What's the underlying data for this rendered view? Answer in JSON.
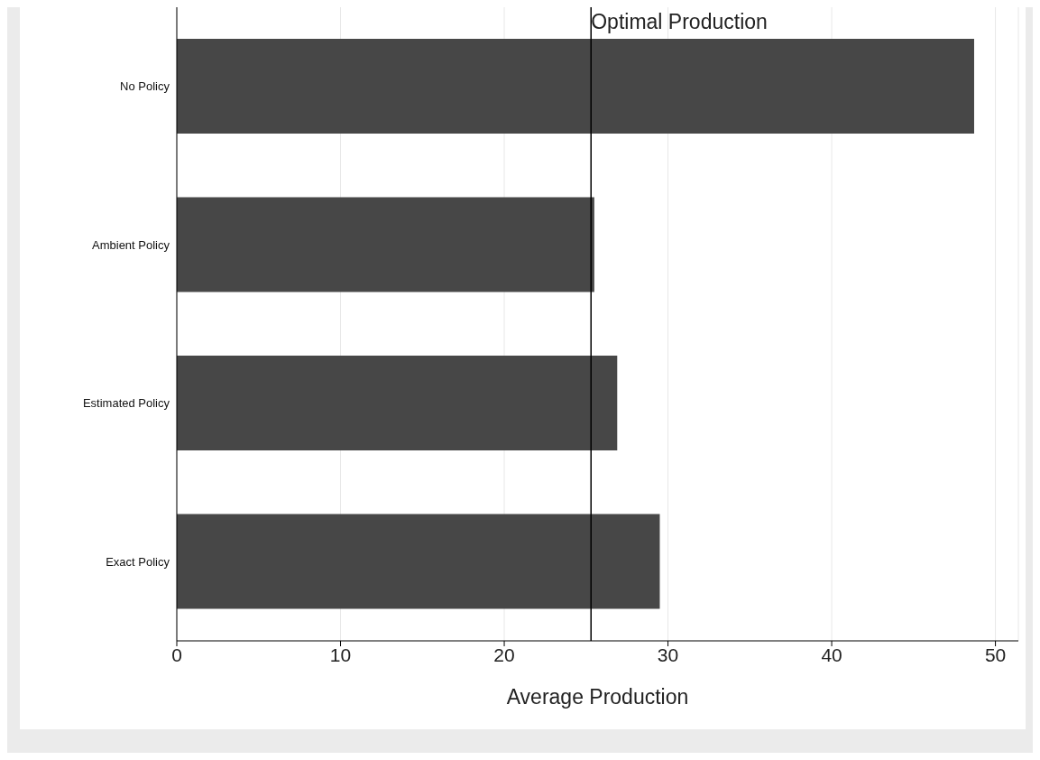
{
  "chart_data": {
    "type": "bar",
    "orientation": "horizontal",
    "xlabel": "Average Production",
    "categories": [
      "No Policy",
      "Ambient Policy",
      "Estimated Policy",
      "Exact Policy"
    ],
    "values": [
      48.7,
      25.5,
      26.9,
      29.5
    ],
    "color": "#474747",
    "xlim": [
      0,
      51.4
    ],
    "xticks": [
      0,
      10,
      20,
      30,
      40,
      50
    ],
    "grid": "x",
    "ref_lines": [
      {
        "axis": "x",
        "value": 25.3,
        "label": "Optimal Production",
        "color": "#000000"
      }
    ]
  }
}
